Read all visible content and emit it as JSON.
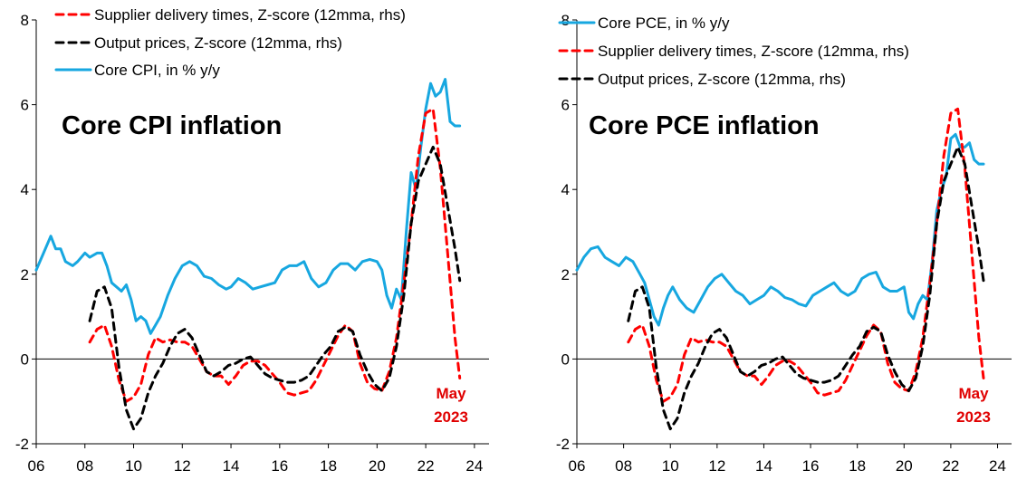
{
  "colors": {
    "red": "#ff0000",
    "black": "#000000",
    "blue": "#17a7e0",
    "anno": "#e00000"
  },
  "chart_data": [
    {
      "type": "line",
      "title": "Core CPI inflation",
      "xlim": [
        2006,
        2024.6
      ],
      "ylim": [
        -2,
        8
      ],
      "x_ticks": [
        "06",
        "08",
        "10",
        "12",
        "14",
        "16",
        "18",
        "20",
        "22",
        "24"
      ],
      "y_ticks": [
        "-2",
        "0",
        "2",
        "4",
        "6",
        "8"
      ],
      "annotation": [
        "May",
        "2023"
      ],
      "legend": [
        {
          "name": "Supplier delivery times, Z-score (12mma, rhs)",
          "series": "supplier"
        },
        {
          "name": "Output prices, Z-score (12mma, rhs)",
          "series": "output"
        },
        {
          "name": "Core CPI, in % y/y",
          "series": "core"
        }
      ],
      "series": [
        {
          "key": "supplier",
          "color": "#ff0000",
          "dashed": true,
          "x": [
            2008.2,
            2008.5,
            2008.8,
            2009.1,
            2009.4,
            2009.7,
            2010.0,
            2010.3,
            2010.6,
            2010.9,
            2011.2,
            2011.5,
            2011.8,
            2012.1,
            2012.4,
            2012.7,
            2013.0,
            2013.3,
            2013.6,
            2013.9,
            2014.2,
            2014.5,
            2014.8,
            2015.1,
            2015.4,
            2015.7,
            2016.0,
            2016.3,
            2016.6,
            2016.9,
            2017.2,
            2017.5,
            2017.8,
            2018.1,
            2018.4,
            2018.7,
            2019.0,
            2019.3,
            2019.6,
            2019.9,
            2020.2,
            2020.5,
            2020.8,
            2021.1,
            2021.4,
            2021.7,
            2022.0,
            2022.3,
            2022.6,
            2022.9,
            2023.2,
            2023.4
          ],
          "y": [
            0.4,
            0.7,
            0.8,
            0.3,
            -0.5,
            -1.0,
            -0.9,
            -0.6,
            0.1,
            0.5,
            0.4,
            0.45,
            0.4,
            0.4,
            0.3,
            0.0,
            -0.3,
            -0.4,
            -0.4,
            -0.6,
            -0.4,
            -0.15,
            -0.05,
            -0.05,
            -0.15,
            -0.35,
            -0.55,
            -0.8,
            -0.85,
            -0.8,
            -0.75,
            -0.5,
            -0.15,
            0.2,
            0.55,
            0.8,
            0.65,
            -0.1,
            -0.55,
            -0.7,
            -0.75,
            -0.3,
            0.5,
            1.8,
            3.2,
            4.8,
            5.8,
            5.9,
            4.5,
            2.5,
            0.5,
            -0.45
          ]
        },
        {
          "key": "output",
          "color": "#000000",
          "dashed": true,
          "x": [
            2008.2,
            2008.5,
            2008.8,
            2009.1,
            2009.4,
            2009.7,
            2010.0,
            2010.3,
            2010.6,
            2010.9,
            2011.2,
            2011.5,
            2011.8,
            2012.1,
            2012.4,
            2012.7,
            2013.0,
            2013.3,
            2013.6,
            2013.9,
            2014.2,
            2014.5,
            2014.8,
            2015.1,
            2015.4,
            2015.7,
            2016.0,
            2016.3,
            2016.6,
            2016.9,
            2017.2,
            2017.5,
            2017.8,
            2018.1,
            2018.4,
            2018.7,
            2019.0,
            2019.3,
            2019.6,
            2019.9,
            2020.2,
            2020.5,
            2020.8,
            2021.1,
            2021.4,
            2021.7,
            2022.0,
            2022.3,
            2022.6,
            2022.9,
            2023.2,
            2023.4
          ],
          "y": [
            0.9,
            1.6,
            1.7,
            1.2,
            -0.2,
            -1.2,
            -1.65,
            -1.4,
            -0.8,
            -0.4,
            -0.1,
            0.3,
            0.6,
            0.7,
            0.5,
            0.1,
            -0.3,
            -0.4,
            -0.3,
            -0.15,
            -0.1,
            0.0,
            0.05,
            -0.15,
            -0.35,
            -0.45,
            -0.5,
            -0.55,
            -0.55,
            -0.5,
            -0.4,
            -0.15,
            0.1,
            0.3,
            0.65,
            0.75,
            0.65,
            0.1,
            -0.3,
            -0.6,
            -0.75,
            -0.45,
            0.3,
            1.5,
            3.2,
            4.2,
            4.6,
            5.0,
            4.6,
            3.6,
            2.6,
            1.85
          ]
        },
        {
          "key": "core",
          "color": "#17a7e0",
          "dashed": false,
          "x": [
            2006.0,
            2006.3,
            2006.6,
            2006.8,
            2007.0,
            2007.2,
            2007.5,
            2007.7,
            2008.0,
            2008.2,
            2008.5,
            2008.7,
            2008.9,
            2009.1,
            2009.3,
            2009.5,
            2009.7,
            2009.9,
            2010.1,
            2010.3,
            2010.5,
            2010.7,
            2010.9,
            2011.1,
            2011.4,
            2011.7,
            2012.0,
            2012.3,
            2012.6,
            2012.9,
            2013.2,
            2013.5,
            2013.8,
            2014.0,
            2014.3,
            2014.6,
            2014.9,
            2015.2,
            2015.5,
            2015.8,
            2016.1,
            2016.4,
            2016.7,
            2017.0,
            2017.3,
            2017.6,
            2017.9,
            2018.2,
            2018.5,
            2018.8,
            2019.1,
            2019.4,
            2019.7,
            2020.0,
            2020.2,
            2020.4,
            2020.6,
            2020.8,
            2021.0,
            2021.2,
            2021.4,
            2021.6,
            2021.8,
            2022.0,
            2022.2,
            2022.4,
            2022.6,
            2022.8,
            2023.0,
            2023.2,
            2023.4
          ],
          "y": [
            2.1,
            2.5,
            2.9,
            2.6,
            2.6,
            2.3,
            2.2,
            2.3,
            2.5,
            2.4,
            2.5,
            2.5,
            2.2,
            1.8,
            1.7,
            1.6,
            1.75,
            1.4,
            0.9,
            1.0,
            0.9,
            0.6,
            0.8,
            1.0,
            1.5,
            1.9,
            2.2,
            2.3,
            2.2,
            1.95,
            1.9,
            1.75,
            1.65,
            1.7,
            1.9,
            1.8,
            1.65,
            1.7,
            1.75,
            1.8,
            2.1,
            2.2,
            2.2,
            2.3,
            1.9,
            1.7,
            1.8,
            2.1,
            2.25,
            2.25,
            2.1,
            2.3,
            2.35,
            2.3,
            2.1,
            1.5,
            1.2,
            1.65,
            1.4,
            3.0,
            4.4,
            4.0,
            5.0,
            5.9,
            6.5,
            6.2,
            6.3,
            6.6,
            5.6,
            5.5,
            5.5
          ]
        }
      ]
    },
    {
      "type": "line",
      "title": "Core PCE inflation",
      "xlim": [
        2006,
        2024.6
      ],
      "ylim": [
        -2,
        8
      ],
      "x_ticks": [
        "06",
        "08",
        "10",
        "12",
        "14",
        "16",
        "18",
        "20",
        "22",
        "24"
      ],
      "y_ticks": [
        "-2",
        "0",
        "2",
        "4",
        "6",
        "8"
      ],
      "annotation": [
        "May",
        "2023"
      ],
      "legend": [
        {
          "name": "Core PCE, in % y/y",
          "series": "core"
        },
        {
          "name": "Supplier delivery times, Z-score (12mma, rhs)",
          "series": "supplier"
        },
        {
          "name": "Output prices, Z-score (12mma, rhs)",
          "series": "output"
        }
      ],
      "series": [
        {
          "key": "supplier",
          "color": "#ff0000",
          "dashed": true,
          "x": [
            2008.2,
            2008.5,
            2008.8,
            2009.1,
            2009.4,
            2009.7,
            2010.0,
            2010.3,
            2010.6,
            2010.9,
            2011.2,
            2011.5,
            2011.8,
            2012.1,
            2012.4,
            2012.7,
            2013.0,
            2013.3,
            2013.6,
            2013.9,
            2014.2,
            2014.5,
            2014.8,
            2015.1,
            2015.4,
            2015.7,
            2016.0,
            2016.3,
            2016.6,
            2016.9,
            2017.2,
            2017.5,
            2017.8,
            2018.1,
            2018.4,
            2018.7,
            2019.0,
            2019.3,
            2019.6,
            2019.9,
            2020.2,
            2020.5,
            2020.8,
            2021.1,
            2021.4,
            2021.7,
            2022.0,
            2022.3,
            2022.6,
            2022.9,
            2023.2,
            2023.4
          ],
          "y": [
            0.4,
            0.7,
            0.8,
            0.3,
            -0.5,
            -1.0,
            -0.9,
            -0.6,
            0.1,
            0.5,
            0.4,
            0.45,
            0.4,
            0.4,
            0.3,
            0.0,
            -0.3,
            -0.4,
            -0.4,
            -0.6,
            -0.4,
            -0.15,
            -0.05,
            -0.05,
            -0.15,
            -0.35,
            -0.55,
            -0.8,
            -0.85,
            -0.8,
            -0.75,
            -0.5,
            -0.15,
            0.2,
            0.55,
            0.8,
            0.65,
            -0.1,
            -0.55,
            -0.7,
            -0.75,
            -0.3,
            0.5,
            1.8,
            3.2,
            4.8,
            5.8,
            5.9,
            4.5,
            2.5,
            0.5,
            -0.45
          ]
        },
        {
          "key": "output",
          "color": "#000000",
          "dashed": true,
          "x": [
            2008.2,
            2008.5,
            2008.8,
            2009.1,
            2009.4,
            2009.7,
            2010.0,
            2010.3,
            2010.6,
            2010.9,
            2011.2,
            2011.5,
            2011.8,
            2012.1,
            2012.4,
            2012.7,
            2013.0,
            2013.3,
            2013.6,
            2013.9,
            2014.2,
            2014.5,
            2014.8,
            2015.1,
            2015.4,
            2015.7,
            2016.0,
            2016.3,
            2016.6,
            2016.9,
            2017.2,
            2017.5,
            2017.8,
            2018.1,
            2018.4,
            2018.7,
            2019.0,
            2019.3,
            2019.6,
            2019.9,
            2020.2,
            2020.5,
            2020.8,
            2021.1,
            2021.4,
            2021.7,
            2022.0,
            2022.3,
            2022.6,
            2022.9,
            2023.2,
            2023.4
          ],
          "y": [
            0.9,
            1.6,
            1.7,
            1.2,
            -0.2,
            -1.2,
            -1.65,
            -1.4,
            -0.8,
            -0.4,
            -0.1,
            0.3,
            0.6,
            0.7,
            0.5,
            0.1,
            -0.3,
            -0.4,
            -0.3,
            -0.15,
            -0.1,
            0.0,
            0.05,
            -0.15,
            -0.35,
            -0.45,
            -0.5,
            -0.55,
            -0.55,
            -0.5,
            -0.4,
            -0.15,
            0.1,
            0.3,
            0.65,
            0.75,
            0.65,
            0.1,
            -0.3,
            -0.6,
            -0.75,
            -0.45,
            0.3,
            1.5,
            3.2,
            4.2,
            4.6,
            5.0,
            4.6,
            3.6,
            2.6,
            1.85
          ]
        },
        {
          "key": "core",
          "color": "#17a7e0",
          "dashed": false,
          "x": [
            2006.0,
            2006.3,
            2006.6,
            2006.9,
            2007.2,
            2007.5,
            2007.8,
            2008.1,
            2008.4,
            2008.7,
            2008.9,
            2009.1,
            2009.3,
            2009.5,
            2009.7,
            2009.9,
            2010.1,
            2010.4,
            2010.7,
            2011.0,
            2011.3,
            2011.6,
            2011.9,
            2012.2,
            2012.5,
            2012.8,
            2013.1,
            2013.4,
            2013.7,
            2014.0,
            2014.3,
            2014.6,
            2014.9,
            2015.2,
            2015.5,
            2015.8,
            2016.1,
            2016.4,
            2016.7,
            2017.0,
            2017.3,
            2017.6,
            2017.9,
            2018.2,
            2018.5,
            2018.8,
            2019.1,
            2019.4,
            2019.7,
            2020.0,
            2020.2,
            2020.4,
            2020.6,
            2020.8,
            2021.0,
            2021.2,
            2021.4,
            2021.6,
            2021.8,
            2022.0,
            2022.2,
            2022.4,
            2022.6,
            2022.8,
            2023.0,
            2023.2,
            2023.4
          ],
          "y": [
            2.1,
            2.4,
            2.6,
            2.65,
            2.4,
            2.3,
            2.2,
            2.4,
            2.3,
            2.0,
            1.8,
            1.4,
            1.0,
            0.8,
            1.2,
            1.5,
            1.7,
            1.4,
            1.2,
            1.1,
            1.4,
            1.7,
            1.9,
            2.0,
            1.8,
            1.6,
            1.5,
            1.3,
            1.4,
            1.5,
            1.7,
            1.6,
            1.45,
            1.4,
            1.3,
            1.25,
            1.5,
            1.6,
            1.7,
            1.8,
            1.6,
            1.5,
            1.6,
            1.9,
            2.0,
            2.05,
            1.7,
            1.6,
            1.6,
            1.7,
            1.1,
            0.95,
            1.3,
            1.5,
            1.4,
            2.3,
            3.5,
            4.0,
            4.3,
            5.2,
            5.3,
            5.0,
            5.0,
            5.1,
            4.7,
            4.6,
            4.6
          ]
        }
      ]
    }
  ]
}
